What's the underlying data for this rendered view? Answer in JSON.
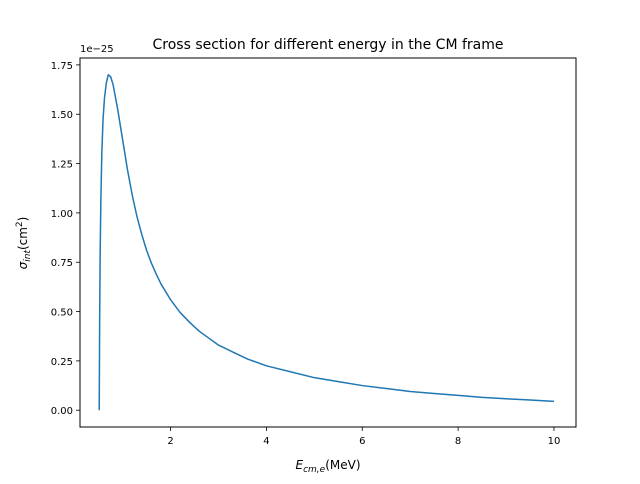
{
  "chart_data": {
    "type": "line",
    "title": "Cross section for different energy in the CM frame",
    "xlabel": {
      "main": "E",
      "sub": "cm,e",
      "unit": "(MeV)"
    },
    "ylabel": {
      "main": "σ",
      "sub": "int",
      "unit": "(cm",
      "sup": "2",
      "close": ")"
    },
    "offset_text": "1e−25",
    "xlim": [
      0.11,
      10.46
    ],
    "ylim": [
      -0.085,
      1.785
    ],
    "x_ticks": [
      {
        "value": 2,
        "label": "2"
      },
      {
        "value": 4,
        "label": "4"
      },
      {
        "value": 6,
        "label": "6"
      },
      {
        "value": 8,
        "label": "8"
      },
      {
        "value": 10,
        "label": "10"
      }
    ],
    "y_ticks": [
      {
        "value": 0.0,
        "label": "0.00"
      },
      {
        "value": 0.25,
        "label": "0.25"
      },
      {
        "value": 0.5,
        "label": "0.50"
      },
      {
        "value": 0.75,
        "label": "0.75"
      },
      {
        "value": 1.0,
        "label": "1.00"
      },
      {
        "value": 1.25,
        "label": "1.25"
      },
      {
        "value": 1.5,
        "label": "1.50"
      },
      {
        "value": 1.75,
        "label": "1.75"
      }
    ],
    "grid": false,
    "series": [
      {
        "color": "#1f77b4",
        "points": [
          [
            0.511,
            0.0
          ],
          [
            0.515,
            0.2
          ],
          [
            0.52,
            0.45
          ],
          [
            0.53,
            0.78
          ],
          [
            0.545,
            1.06
          ],
          [
            0.565,
            1.3
          ],
          [
            0.59,
            1.47
          ],
          [
            0.62,
            1.58
          ],
          [
            0.66,
            1.66
          ],
          [
            0.7,
            1.7
          ],
          [
            0.75,
            1.69
          ],
          [
            0.8,
            1.65
          ],
          [
            0.9,
            1.52
          ],
          [
            1.0,
            1.37
          ],
          [
            1.1,
            1.22
          ],
          [
            1.2,
            1.09
          ],
          [
            1.3,
            0.98
          ],
          [
            1.4,
            0.89
          ],
          [
            1.5,
            0.81
          ],
          [
            1.6,
            0.745
          ],
          [
            1.7,
            0.69
          ],
          [
            1.8,
            0.64
          ],
          [
            2.0,
            0.56
          ],
          [
            2.2,
            0.495
          ],
          [
            2.4,
            0.445
          ],
          [
            2.6,
            0.4
          ],
          [
            2.8,
            0.365
          ],
          [
            3.0,
            0.33
          ],
          [
            3.3,
            0.295
          ],
          [
            3.6,
            0.26
          ],
          [
            4.0,
            0.225
          ],
          [
            4.5,
            0.195
          ],
          [
            5.0,
            0.165
          ],
          [
            5.5,
            0.145
          ],
          [
            6.0,
            0.125
          ],
          [
            6.5,
            0.11
          ],
          [
            7.0,
            0.095
          ],
          [
            7.5,
            0.085
          ],
          [
            8.0,
            0.075
          ],
          [
            8.5,
            0.065
          ],
          [
            9.0,
            0.058
          ],
          [
            9.5,
            0.052
          ],
          [
            10.0,
            0.045
          ]
        ]
      }
    ]
  }
}
